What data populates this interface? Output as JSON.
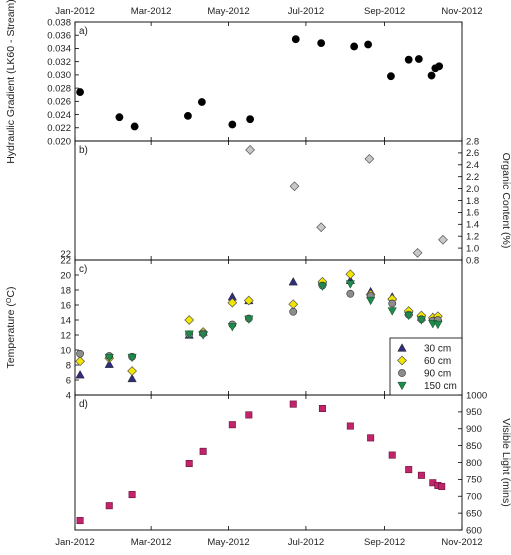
{
  "chart_data": {
    "type": "scatter",
    "x_axis": {
      "range": [
        "2012-01-01",
        "2012-11-01"
      ],
      "tick_labels": [
        "Jan-2012",
        "Mar-2012",
        "May-2012",
        "Jul-2012",
        "Sep-2012",
        "Nov-2012"
      ],
      "tick_dates": [
        "2012-01-01",
        "2012-03-01",
        "2012-05-01",
        "2012-07-01",
        "2012-09-01",
        "2012-11-01"
      ]
    },
    "panels": [
      {
        "label": "a)",
        "left_axis": {
          "label": "Hydraulic Gradient (LK60 - Stream)",
          "range": [
            0.02,
            0.038
          ],
          "ticks": [
            0.02,
            0.022,
            0.024,
            0.026,
            0.028,
            0.03,
            0.032,
            0.034,
            0.036,
            0.038
          ],
          "tick_labels": [
            "0.020",
            "0.022",
            "0.024",
            "0.026",
            "0.028",
            "0.030",
            "0.032",
            "0.034",
            "0.036",
            "0.038"
          ]
        },
        "series": [
          {
            "name": "",
            "marker": "circle",
            "color": "#000000",
            "points": [
              [
                "2012-01-05",
                0.0274
              ],
              [
                "2012-02-05",
                0.0236
              ],
              [
                "2012-02-17",
                0.0222
              ],
              [
                "2012-03-30",
                0.0238
              ],
              [
                "2012-04-10",
                0.0259
              ],
              [
                "2012-05-04",
                0.0225
              ],
              [
                "2012-05-18",
                0.0233
              ],
              [
                "2012-06-23",
                0.0354
              ],
              [
                "2012-07-13",
                0.0348
              ],
              [
                "2012-08-08",
                0.0343
              ],
              [
                "2012-08-19",
                0.0346
              ],
              [
                "2012-09-06",
                0.0298
              ],
              [
                "2012-09-20",
                0.0323
              ],
              [
                "2012-09-28",
                0.0324
              ],
              [
                "2012-10-08",
                0.0299
              ],
              [
                "2012-10-11",
                0.031
              ],
              [
                "2012-10-14",
                0.0313
              ]
            ]
          }
        ]
      },
      {
        "label": "b)",
        "left_axis": {
          "label": "",
          "tick_labels": [
            "22"
          ]
        },
        "right_axis": {
          "label": "Organic Content (%)",
          "range": [
            0.8,
            2.8
          ],
          "ticks": [
            0.8,
            1.0,
            1.2,
            1.4,
            1.6,
            1.8,
            2.0,
            2.2,
            2.4,
            2.6,
            2.8
          ],
          "tick_labels": [
            "0.8",
            "1.0",
            "1.2",
            "1.4",
            "1.6",
            "1.8",
            "2.0",
            "2.2",
            "2.4",
            "2.6",
            "2.8"
          ]
        },
        "series": [
          {
            "name": "",
            "marker": "diamond",
            "color": "#c8c8c8",
            "points": [
              [
                "2012-05-18",
                2.65
              ],
              [
                "2012-06-22",
                2.04
              ],
              [
                "2012-07-13",
                1.35
              ],
              [
                "2012-08-20",
                2.5
              ],
              [
                "2012-09-27",
                0.92
              ],
              [
                "2012-10-17",
                1.14
              ]
            ]
          }
        ]
      },
      {
        "label": "c)",
        "left_axis": {
          "label": "Temperature (",
          "label_sup": "O",
          "label_end": "C)",
          "range": [
            4,
            22
          ],
          "ticks": [
            4,
            6,
            8,
            10,
            12,
            14,
            16,
            18,
            20,
            22
          ],
          "tick_labels": [
            "4",
            "6",
            "8",
            "10",
            "12",
            "14",
            "16",
            "18",
            "20",
            "22"
          ]
        },
        "legend": {
          "placement": "lower-right"
        },
        "series": [
          {
            "name": "30 cm",
            "marker": "triangle-up",
            "color": "#2e2e7a",
            "points": [
              [
                "2012-01-05",
                6.7
              ],
              [
                "2012-01-28",
                8.1
              ],
              [
                "2012-02-15",
                6.2
              ],
              [
                "2012-03-31",
                12.0
              ],
              [
                "2012-04-11",
                12.4
              ],
              [
                "2012-05-04",
                17.1
              ],
              [
                "2012-05-17",
                16.6
              ],
              [
                "2012-06-21",
                19.1
              ],
              [
                "2012-07-14",
                19.1
              ],
              [
                "2012-08-05",
                19.3
              ],
              [
                "2012-08-21",
                17.8
              ],
              [
                "2012-09-07",
                17.1
              ],
              [
                "2012-09-20",
                15.1
              ],
              [
                "2012-09-30",
                14.4
              ],
              [
                "2012-10-09",
                14.4
              ],
              [
                "2012-10-13",
                14.3
              ]
            ]
          },
          {
            "name": "60 cm",
            "marker": "diamond",
            "color": "#f2e600",
            "points": [
              [
                "2012-01-05",
                8.5
              ],
              [
                "2012-01-28",
                8.9
              ],
              [
                "2012-02-15",
                7.2
              ],
              [
                "2012-03-31",
                14.0
              ],
              [
                "2012-04-11",
                12.4
              ],
              [
                "2012-05-04",
                16.3
              ],
              [
                "2012-05-17",
                16.6
              ],
              [
                "2012-06-21",
                16.1
              ],
              [
                "2012-07-14",
                19.1
              ],
              [
                "2012-08-05",
                20.1
              ],
              [
                "2012-08-21",
                17.4
              ],
              [
                "2012-09-07",
                16.8
              ],
              [
                "2012-09-20",
                15.2
              ],
              [
                "2012-09-30",
                14.6
              ],
              [
                "2012-10-09",
                14.3
              ],
              [
                "2012-10-13",
                14.5
              ]
            ]
          },
          {
            "name": "90 cm",
            "marker": "circle",
            "color": "#8c8c8c",
            "points": [
              [
                "2012-01-05",
                9.5
              ],
              [
                "2012-01-28",
                9.2
              ],
              [
                "2012-02-15",
                9.1
              ],
              [
                "2012-03-31",
                12.1
              ],
              [
                "2012-04-11",
                12.2
              ],
              [
                "2012-05-04",
                13.4
              ],
              [
                "2012-05-17",
                14.2
              ],
              [
                "2012-06-21",
                15.1
              ],
              [
                "2012-07-14",
                18.6
              ],
              [
                "2012-08-05",
                17.5
              ],
              [
                "2012-08-21",
                17.2
              ],
              [
                "2012-09-07",
                16.2
              ],
              [
                "2012-09-20",
                14.7
              ],
              [
                "2012-09-30",
                14.1
              ],
              [
                "2012-10-09",
                13.9
              ],
              [
                "2012-10-13",
                14.0
              ]
            ]
          },
          {
            "name": "150 cm",
            "marker": "triangle-down",
            "color": "#1f8a4c",
            "points": [
              [
                "2012-01-28",
                9.0
              ],
              [
                "2012-02-15",
                9.0
              ],
              [
                "2012-03-31",
                12.1
              ],
              [
                "2012-04-11",
                12.0
              ],
              [
                "2012-05-04",
                13.1
              ],
              [
                "2012-05-17",
                14.1
              ],
              [
                "2012-07-14",
                18.5
              ],
              [
                "2012-08-05",
                18.8
              ],
              [
                "2012-08-21",
                16.6
              ],
              [
                "2012-09-07",
                15.2
              ],
              [
                "2012-09-20",
                14.6
              ],
              [
                "2012-09-30",
                14.0
              ],
              [
                "2012-10-09",
                13.5
              ],
              [
                "2012-10-13",
                13.4
              ]
            ]
          }
        ]
      },
      {
        "label": "d)",
        "right_axis": {
          "label": "Visible Light (mins)",
          "range": [
            600,
            1000
          ],
          "ticks": [
            600,
            650,
            700,
            750,
            800,
            850,
            900,
            950,
            1000
          ],
          "tick_labels": [
            "600",
            "650",
            "700",
            "750",
            "800",
            "850",
            "900",
            "950",
            "1000"
          ]
        },
        "series": [
          {
            "name": "",
            "marker": "square",
            "color": "#c2246b",
            "points": [
              [
                "2012-01-05",
                628
              ],
              [
                "2012-01-28",
                672
              ],
              [
                "2012-02-15",
                705
              ],
              [
                "2012-03-31",
                797
              ],
              [
                "2012-04-11",
                833
              ],
              [
                "2012-05-04",
                912
              ],
              [
                "2012-05-17",
                941
              ],
              [
                "2012-06-21",
                973
              ],
              [
                "2012-07-14",
                960
              ],
              [
                "2012-08-05",
                908
              ],
              [
                "2012-08-21",
                873
              ],
              [
                "2012-09-07",
                822
              ],
              [
                "2012-09-20",
                779
              ],
              [
                "2012-09-30",
                762
              ],
              [
                "2012-10-09",
                740
              ],
              [
                "2012-10-13",
                732
              ],
              [
                "2012-10-16",
                729
              ]
            ]
          }
        ]
      }
    ]
  }
}
